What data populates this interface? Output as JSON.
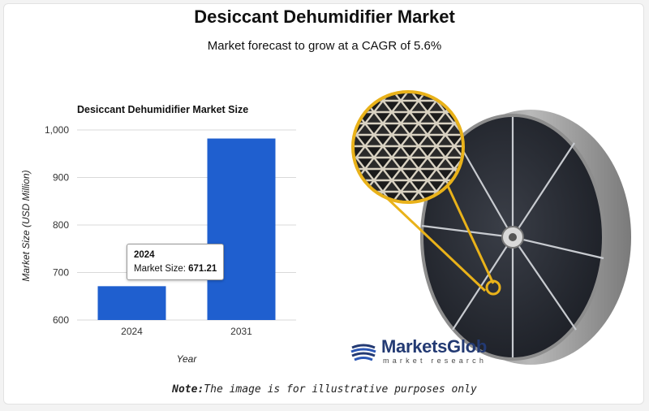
{
  "header": {
    "title": "Desiccant Dehumidifier Market",
    "subtitle": "Market forecast to grow at a CAGR of 5.6%"
  },
  "chart_data": {
    "type": "bar",
    "title": "Desiccant Dehumidifier Market Size",
    "xlabel": "Year",
    "ylabel": "Market Size (USD Million)",
    "categories": [
      "2024",
      "2031"
    ],
    "values": [
      671.21,
      982
    ],
    "ylim": [
      600,
      1000
    ],
    "yticks": [
      "600",
      "700",
      "800",
      "900",
      "1,000"
    ],
    "grid": true,
    "bar_color": "#1f5fcf",
    "tooltip": {
      "year": "2024",
      "label": "Market Size:",
      "value": "671.21"
    }
  },
  "brand": {
    "name": "MarketsGlob",
    "tagline": "market research"
  },
  "footer": {
    "note_label": "Note:",
    "note_text": "The image is for illustrative purposes only"
  }
}
